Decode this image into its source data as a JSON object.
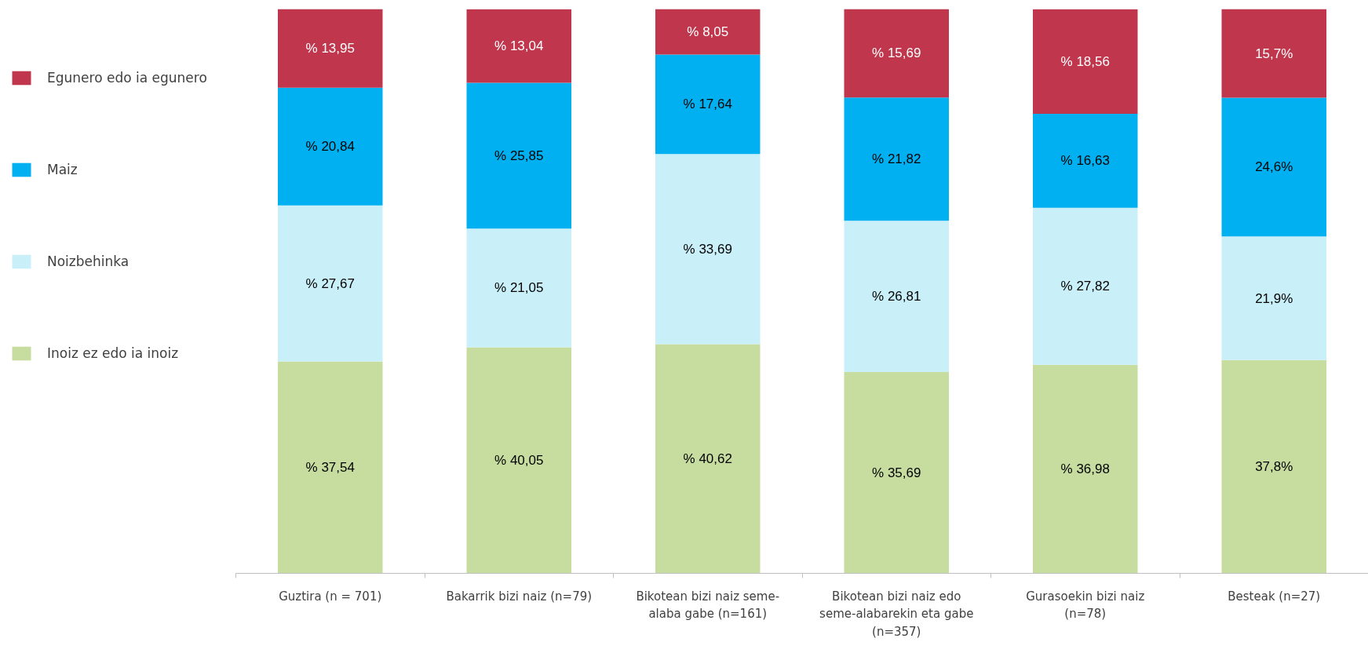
{
  "chart_data": {
    "type": "bar",
    "stacked": true,
    "legend": "left",
    "grid": false,
    "tick_labels": "x",
    "categories": [
      "Guztira (n = 701)",
      "Bakarrik bizi naiz (n=79)",
      "Bikotean bizi naiz seme-alaba gabe (n=161)",
      "Bikotean bizi naiz edo seme-alabarekin eta gabe (n=357)",
      "Gurasoekin bizi naiz (n=78)",
      "Besteak (n=27)"
    ],
    "series": [
      {
        "name": "Inoiz ez edo ia inoiz",
        "color": "#c6dd9f",
        "values": [
          37.54,
          40.05,
          40.62,
          35.69,
          36.98,
          37.8
        ],
        "value_labels": [
          "% 37,54",
          "% 40,05",
          "% 40,62",
          "% 35,69",
          "% 36,98",
          "37,8%"
        ]
      },
      {
        "name": "Noizbehinka",
        "color": "#c9eff9",
        "values": [
          27.67,
          21.05,
          33.69,
          26.81,
          27.82,
          21.9
        ],
        "value_labels": [
          "% 27,67",
          "% 21,05",
          "% 33,69",
          "% 26,81",
          "% 27,82",
          "21,9%"
        ]
      },
      {
        "name": "Maiz",
        "color": "#00b0f0",
        "values": [
          20.84,
          25.85,
          17.64,
          21.82,
          16.63,
          24.6
        ],
        "value_labels": [
          "% 20,84",
          "% 25,85",
          "% 17,64",
          "% 21,82",
          "% 16,63",
          "24,6%"
        ]
      },
      {
        "name": "Egunero edo ia egunero",
        "color": "#c0364c",
        "values": [
          13.95,
          13.04,
          8.05,
          15.69,
          18.56,
          15.7
        ],
        "value_labels": [
          "% 13,95",
          "% 13,04",
          "% 8,05",
          "% 15,69",
          "% 18,56",
          "15,7%"
        ]
      }
    ]
  }
}
